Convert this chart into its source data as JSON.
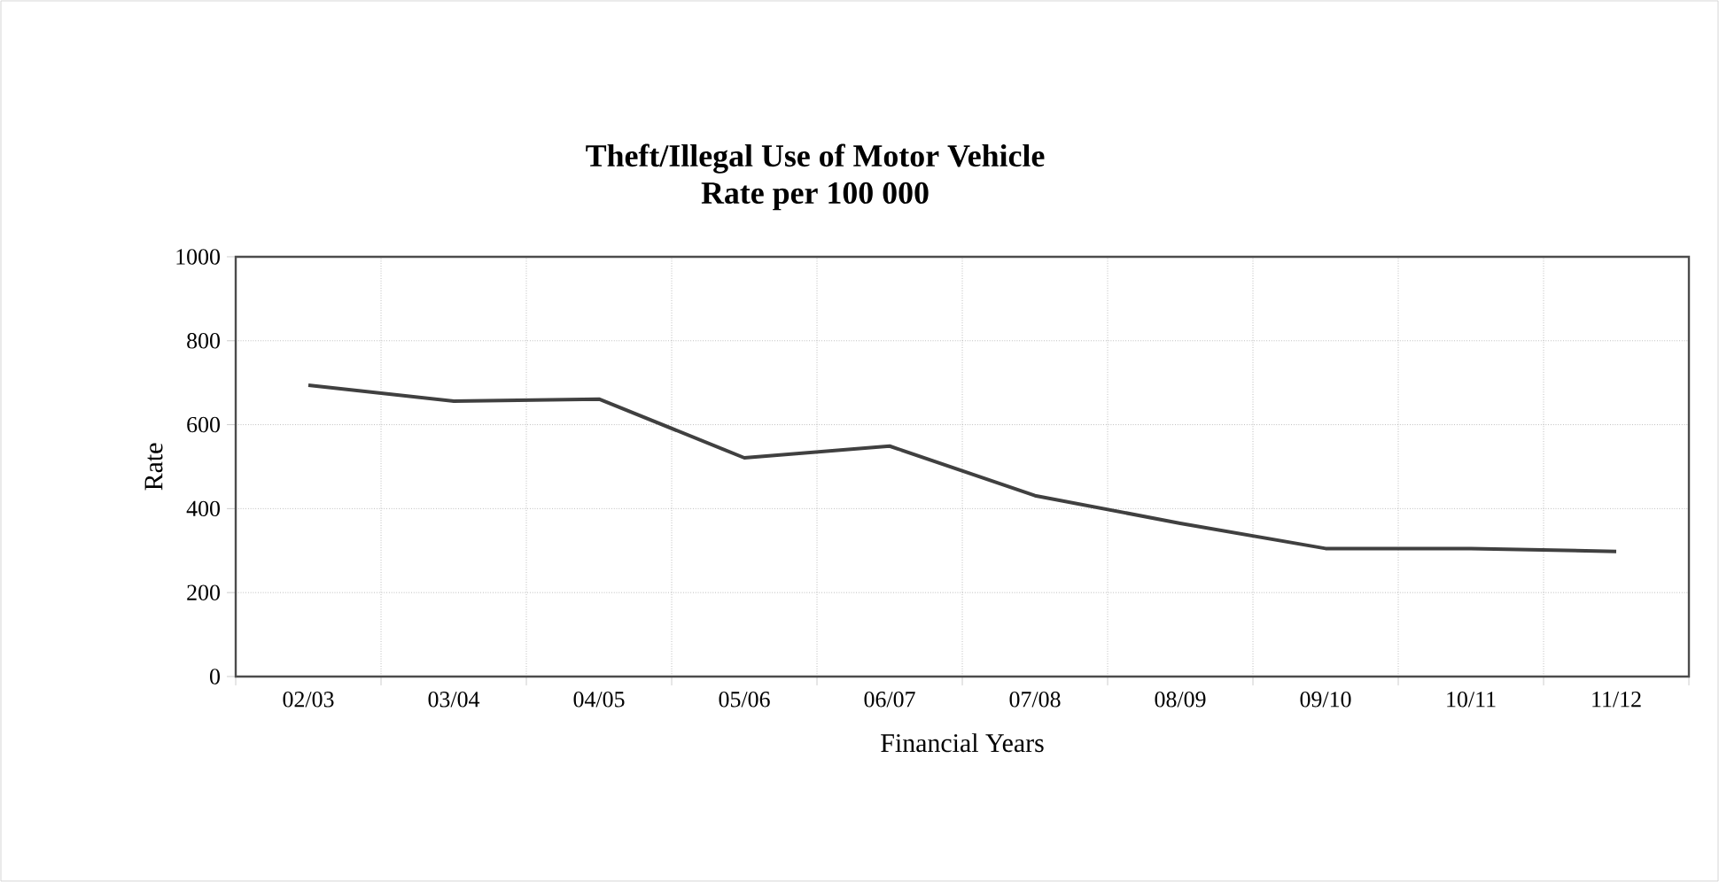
{
  "chart_data": {
    "type": "line",
    "title": "Theft/Illegal Use of Motor Vehicle",
    "subtitle": "Rate per 100 000",
    "xlabel": "Financial Years",
    "ylabel": "Rate",
    "categories": [
      "02/03",
      "03/04",
      "04/05",
      "05/06",
      "06/07",
      "07/08",
      "08/09",
      "09/10",
      "10/11",
      "11/12"
    ],
    "series": [
      {
        "color": "#404040",
        "values": [
          694,
          656,
          661,
          521,
          549,
          431,
          365,
          305,
          305,
          298
        ]
      }
    ],
    "ylim": [
      0,
      1000
    ],
    "yticks": [
      0,
      200,
      400,
      600,
      800,
      1000
    ],
    "grid": true,
    "marker": "none",
    "line_style": "solid"
  }
}
